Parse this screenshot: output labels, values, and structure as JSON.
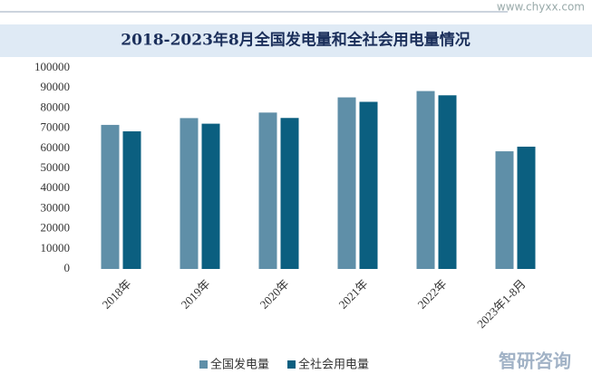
{
  "source": "www.chyxx.com",
  "brand": "智研咨询",
  "chart_data": {
    "type": "bar",
    "title": "2018-2023年8月全国发电量和全社会用电量情况",
    "categories": [
      "2018年",
      "2019年",
      "2020年",
      "2021年",
      "2022年",
      "2023年1-8月"
    ],
    "series": [
      {
        "name": "全国发电量",
        "color": "#5f8fa8",
        "values": [
          71661,
          75034,
          77791,
          85342,
          88487,
          58524
        ]
      },
      {
        "name": "全社会用电量",
        "color": "#0b5f80",
        "values": [
          68449,
          72255,
          75110,
          83128,
          86372,
          60826
        ]
      }
    ],
    "ylim": [
      0,
      100000
    ],
    "yticks": [
      0,
      10000,
      20000,
      30000,
      40000,
      50000,
      60000,
      70000,
      80000,
      90000,
      100000
    ],
    "grid": false,
    "legend": "bottom"
  }
}
